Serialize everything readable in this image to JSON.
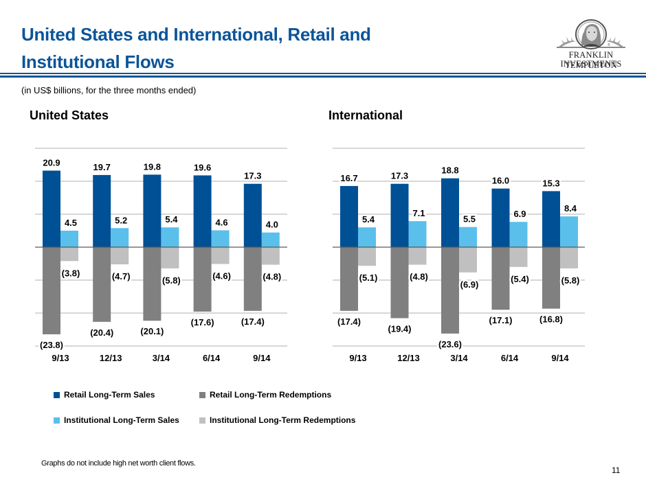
{
  "header": {
    "title_line1": "United States and International, Retail and",
    "title_line2": "Institutional Flows",
    "subtitle": "(in US$ billions, for the three months ended)",
    "logo_line1": "FRANKLIN TEMPLETON",
    "logo_line2": "INVESTMENTS"
  },
  "colors": {
    "title": "#0b5499",
    "retail_sales": "#005096",
    "institutional_sales": "#5bbfec",
    "retail_redemptions": "#808080",
    "institutional_redemptions": "#c0c0c0",
    "gridline": "#bfbfbf",
    "zero_line": "#595959"
  },
  "legend": {
    "items": [
      {
        "label": "Retail Long-Term Sales",
        "color": "#005096"
      },
      {
        "label": "Retail Long-Term Redemptions",
        "color": "#808080"
      },
      {
        "label": "Institutional Long-Term Sales",
        "color": "#5bbfec"
      },
      {
        "label": "Institutional Long-Term Redemptions",
        "color": "#c0c0c0"
      }
    ]
  },
  "footer": {
    "note": "Graphs do not include high net worth client flows.",
    "page_number": "11"
  },
  "chart_data": [
    {
      "type": "bar",
      "title": "United States",
      "categories": [
        "9/13",
        "12/13",
        "3/14",
        "6/14",
        "9/14"
      ],
      "ylim": [
        -27,
        27
      ],
      "gridline_step": 9,
      "grid": true,
      "legend_placement": "bottom",
      "series": [
        {
          "name": "Retail Long-Term Sales",
          "values": [
            20.9,
            19.7,
            19.8,
            19.6,
            17.3
          ],
          "labels": [
            "20.9",
            "19.7",
            "19.8",
            "19.6",
            "17.3"
          ]
        },
        {
          "name": "Institutional Long-Term Sales",
          "values": [
            4.5,
            5.2,
            5.4,
            4.6,
            4.0
          ],
          "labels": [
            "4.5",
            "5.2",
            "5.4",
            "4.6",
            "4.0"
          ]
        },
        {
          "name": "Retail Long-Term Redemptions",
          "values": [
            -23.8,
            -20.4,
            -20.1,
            -17.6,
            -17.4
          ],
          "labels": [
            "(23.8)",
            "(20.4)",
            "(20.1)",
            "(17.6)",
            "(17.4)"
          ]
        },
        {
          "name": "Institutional Long-Term Redemptions",
          "values": [
            -3.8,
            -4.7,
            -5.8,
            -4.6,
            -4.8
          ],
          "labels": [
            "(3.8)",
            "(4.7)",
            "(5.8)",
            "(4.6)",
            "(4.8)"
          ]
        }
      ]
    },
    {
      "type": "bar",
      "title": "International",
      "categories": [
        "9/13",
        "12/13",
        "3/14",
        "6/14",
        "9/14"
      ],
      "ylim": [
        -27,
        27
      ],
      "gridline_step": 9,
      "grid": true,
      "legend_placement": "bottom",
      "series": [
        {
          "name": "Retail Long-Term Sales",
          "values": [
            16.7,
            17.3,
            18.8,
            16.0,
            15.3
          ],
          "labels": [
            "16.7",
            "17.3",
            "18.8",
            "16.0",
            "15.3"
          ]
        },
        {
          "name": "Institutional Long-Term Sales",
          "values": [
            5.4,
            7.1,
            5.5,
            6.9,
            8.4
          ],
          "labels": [
            "5.4",
            "7.1",
            "5.5",
            "6.9",
            "8.4"
          ]
        },
        {
          "name": "Retail Long-Term Redemptions",
          "values": [
            -17.4,
            -19.4,
            -23.6,
            -17.1,
            -16.8
          ],
          "labels": [
            "(17.4)",
            "(19.4)",
            "(23.6)",
            "(17.1)",
            "(16.8)"
          ]
        },
        {
          "name": "Institutional Long-Term Redemptions",
          "values": [
            -5.1,
            -4.8,
            -6.9,
            -5.4,
            -5.8
          ],
          "labels": [
            "(5.1)",
            "(4.8)",
            "(6.9)",
            "(5.4)",
            "(5.8)"
          ]
        }
      ]
    }
  ]
}
